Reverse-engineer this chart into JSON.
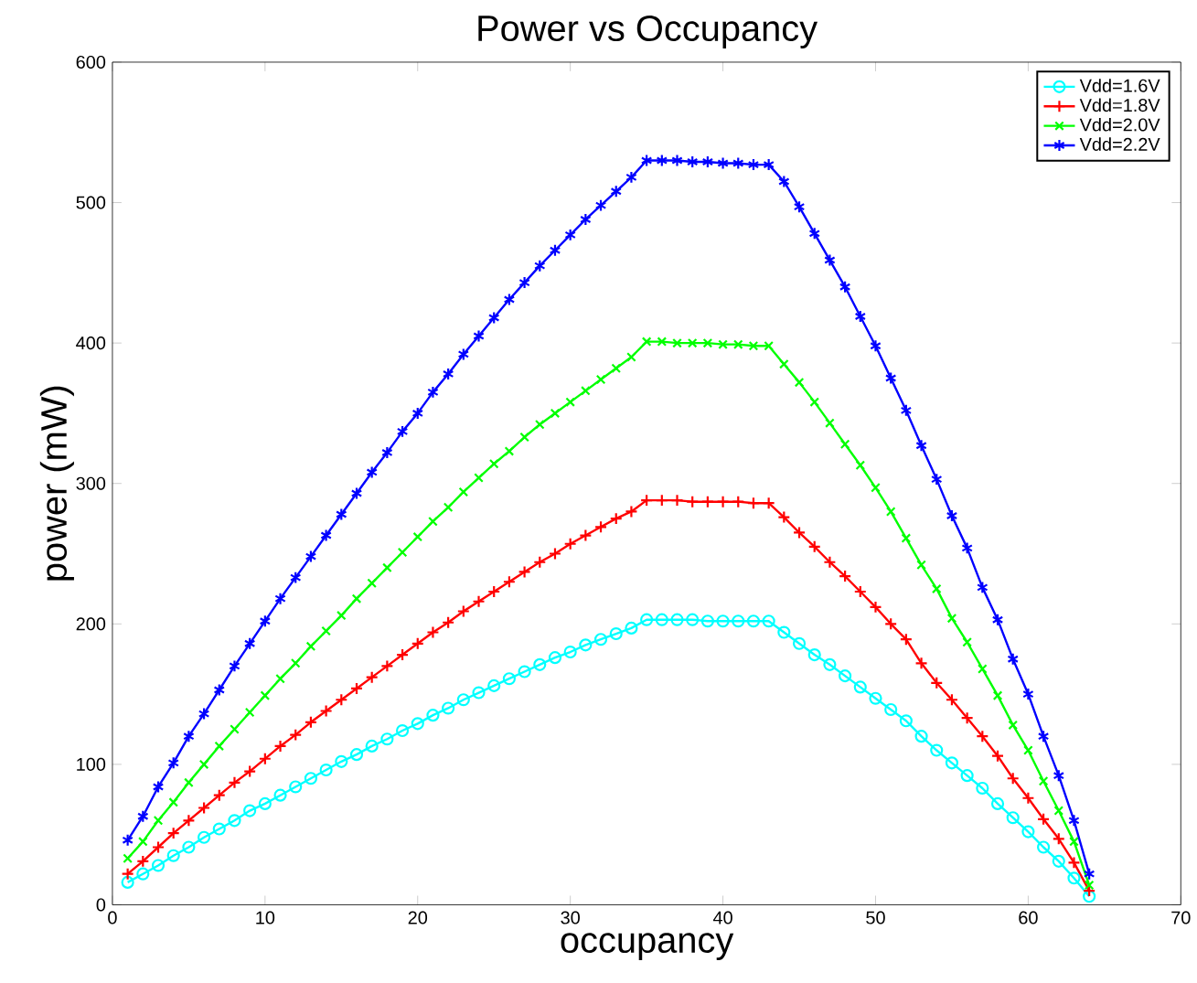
{
  "chart_data": {
    "type": "line",
    "title": "Power vs Occupancy",
    "xlabel": "occupancy",
    "ylabel": "power (mW)",
    "x": [
      1,
      2,
      3,
      4,
      5,
      6,
      7,
      8,
      9,
      10,
      11,
      12,
      13,
      14,
      15,
      16,
      17,
      18,
      19,
      20,
      21,
      22,
      23,
      24,
      25,
      26,
      27,
      28,
      29,
      30,
      31,
      32,
      33,
      34,
      35,
      36,
      37,
      38,
      39,
      40,
      41,
      42,
      43,
      44,
      45,
      46,
      47,
      48,
      49,
      50,
      51,
      52,
      53,
      54,
      55,
      56,
      57,
      58,
      59,
      60,
      61,
      62,
      63,
      64
    ],
    "series": [
      {
        "name": "Vdd=1.6V",
        "color": "#00ffff",
        "marker": "circle",
        "values": [
          16,
          22,
          28,
          35,
          41,
          48,
          54,
          60,
          67,
          72,
          78,
          84,
          90,
          96,
          102,
          107,
          113,
          118,
          124,
          129,
          135,
          140,
          146,
          151,
          156,
          161,
          166,
          171,
          176,
          180,
          185,
          189,
          193,
          197,
          203,
          203,
          203,
          203,
          202,
          202,
          202,
          202,
          202,
          194,
          186,
          178,
          171,
          163,
          155,
          147,
          139,
          131,
          120,
          110,
          101,
          92,
          83,
          72,
          62,
          52,
          41,
          31,
          19,
          6
        ]
      },
      {
        "name": "Vdd=1.8V",
        "color": "#ff0000",
        "marker": "plus",
        "values": [
          22,
          31,
          41,
          51,
          60,
          69,
          78,
          87,
          95,
          104,
          113,
          121,
          130,
          138,
          146,
          154,
          162,
          170,
          178,
          186,
          194,
          201,
          209,
          216,
          223,
          230,
          237,
          244,
          250,
          257,
          263,
          269,
          275,
          280,
          288,
          288,
          288,
          287,
          287,
          287,
          287,
          286,
          286,
          276,
          265,
          255,
          244,
          234,
          223,
          212,
          200,
          189,
          172,
          158,
          146,
          133,
          120,
          106,
          90,
          76,
          61,
          47,
          30,
          10
        ]
      },
      {
        "name": "Vdd=2.0V",
        "color": "#00ff00",
        "marker": "x",
        "values": [
          33,
          45,
          60,
          73,
          87,
          100,
          113,
          125,
          137,
          149,
          161,
          172,
          184,
          195,
          206,
          218,
          229,
          240,
          251,
          262,
          273,
          283,
          294,
          304,
          314,
          323,
          333,
          342,
          350,
          358,
          366,
          374,
          382,
          390,
          401,
          401,
          400,
          400,
          400,
          399,
          399,
          398,
          398,
          385,
          372,
          358,
          343,
          328,
          313,
          297,
          280,
          261,
          242,
          225,
          204,
          187,
          168,
          149,
          128,
          110,
          88,
          67,
          45,
          14
        ]
      },
      {
        "name": "Vdd=2.2V",
        "color": "#0000ff",
        "marker": "cross",
        "values": [
          46,
          63,
          84,
          101,
          120,
          136,
          153,
          170,
          186,
          202,
          218,
          233,
          248,
          263,
          278,
          293,
          308,
          322,
          337,
          350,
          365,
          378,
          392,
          405,
          418,
          431,
          443,
          455,
          466,
          477,
          488,
          498,
          508,
          518,
          530,
          530,
          530,
          529,
          529,
          528,
          528,
          527,
          527,
          515,
          497,
          478,
          459,
          440,
          419,
          398,
          375,
          352,
          327,
          303,
          277,
          254,
          226,
          203,
          175,
          150,
          120,
          92,
          60,
          22
        ]
      }
    ],
    "xlim": [
      0,
      70
    ],
    "ylim": [
      0,
      600
    ],
    "xticks": [
      0,
      10,
      20,
      30,
      40,
      50,
      60,
      70
    ],
    "yticks": [
      0,
      100,
      200,
      300,
      400,
      500,
      600
    ],
    "grid": false,
    "legend": "top right"
  }
}
